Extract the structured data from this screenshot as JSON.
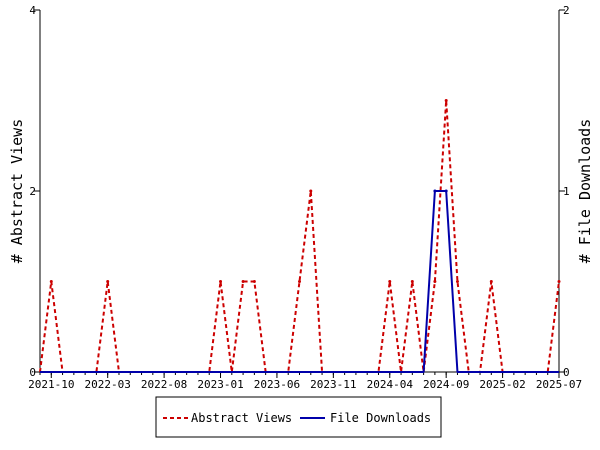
{
  "chart_data": {
    "type": "line",
    "title": "",
    "ylabel_left": "# Abstract Views",
    "ylabel_right": "# File Downloads",
    "ylim_left": [
      0,
      4
    ],
    "ylim_right": [
      0,
      2
    ],
    "yticks_left": [
      "0",
      "2",
      "4"
    ],
    "yticks_right": [
      "0",
      "1",
      "2"
    ],
    "x_tick_labels": [
      "2021-10",
      "2022-03",
      "2022-08",
      "2023-01",
      "2023-06",
      "2023-11",
      "2024-04",
      "2024-09",
      "2025-02",
      "2025-07"
    ],
    "x_months": [
      "2021-09",
      "2021-10",
      "2021-11",
      "2021-12",
      "2022-01",
      "2022-02",
      "2022-03",
      "2022-04",
      "2022-05",
      "2022-06",
      "2022-07",
      "2022-08",
      "2022-09",
      "2022-10",
      "2022-11",
      "2022-12",
      "2023-01",
      "2023-02",
      "2023-03",
      "2023-04",
      "2023-05",
      "2023-06",
      "2023-07",
      "2023-08",
      "2023-09",
      "2023-10",
      "2023-11",
      "2023-12",
      "2024-01",
      "2024-02",
      "2024-03",
      "2024-04",
      "2024-05",
      "2024-06",
      "2024-07",
      "2024-08",
      "2024-09",
      "2024-10",
      "2024-11",
      "2024-12",
      "2025-01",
      "2025-02",
      "2025-03",
      "2025-04",
      "2025-05",
      "2025-06",
      "2025-07"
    ],
    "series": [
      {
        "name": "Abstract Views",
        "axis": "left",
        "color": "#cc0000",
        "style": "dashed",
        "values": [
          0,
          1,
          0,
          0,
          0,
          0,
          1,
          0,
          0,
          0,
          0,
          0,
          0,
          0,
          0,
          0,
          1,
          0,
          1,
          1,
          0,
          0,
          0,
          1,
          2,
          0,
          0,
          0,
          0,
          0,
          0,
          1,
          0,
          1,
          0,
          1,
          3,
          1,
          0,
          0,
          1,
          0,
          0,
          0,
          0,
          0,
          1
        ]
      },
      {
        "name": "File Downloads",
        "axis": "right",
        "color": "#0000aa",
        "style": "solid",
        "values": [
          0,
          0,
          0,
          0,
          0,
          0,
          0,
          0,
          0,
          0,
          0,
          0,
          0,
          0,
          0,
          0,
          0,
          0,
          0,
          0,
          0,
          0,
          0,
          0,
          0,
          0,
          0,
          0,
          0,
          0,
          0,
          0,
          0,
          0,
          0,
          1,
          1,
          0,
          0,
          0,
          0,
          0,
          0,
          0,
          0,
          0,
          0
        ]
      }
    ],
    "legend_position": "bottom",
    "grid": false
  }
}
